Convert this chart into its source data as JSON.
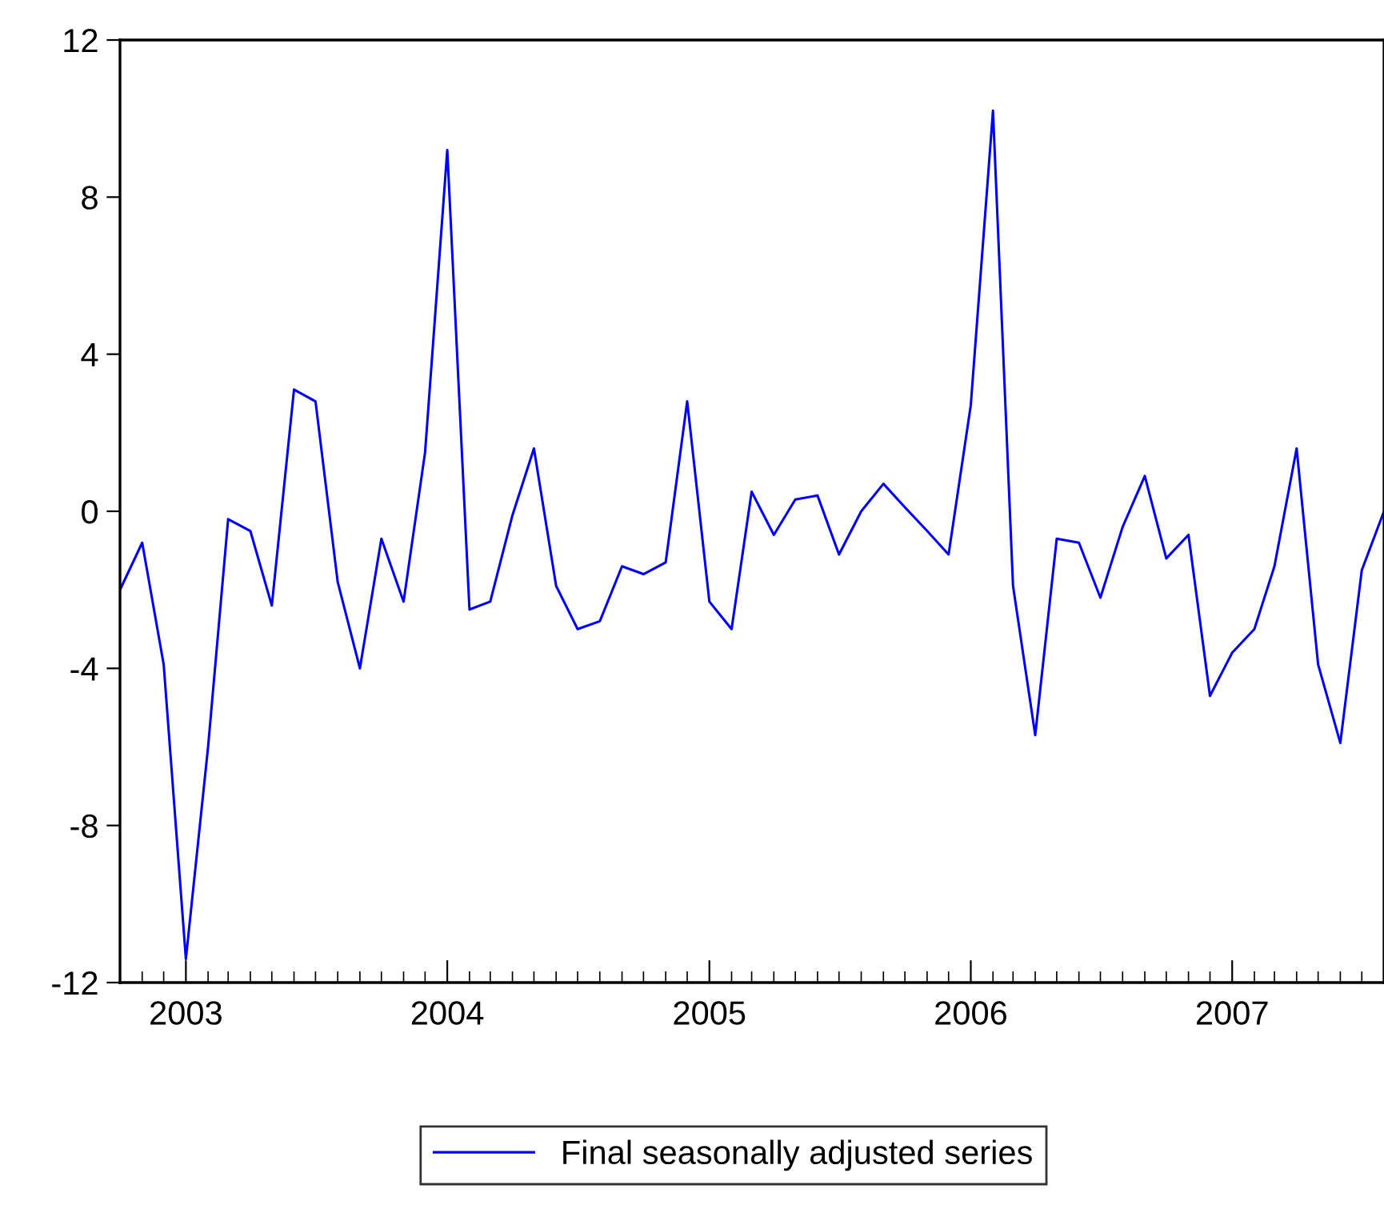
{
  "chart_data": {
    "type": "line",
    "x": [
      "2002-10",
      "2002-11",
      "2002-12",
      "2003-01",
      "2003-02",
      "2003-03",
      "2003-04",
      "2003-05",
      "2003-06",
      "2003-07",
      "2003-08",
      "2003-09",
      "2003-10",
      "2003-11",
      "2003-12",
      "2004-01",
      "2004-02",
      "2004-03",
      "2004-04",
      "2004-05",
      "2004-06",
      "2004-07",
      "2004-08",
      "2004-09",
      "2004-10",
      "2004-11",
      "2004-12",
      "2005-01",
      "2005-02",
      "2005-03",
      "2005-04",
      "2005-05",
      "2005-06",
      "2005-07",
      "2005-08",
      "2005-09",
      "2005-10",
      "2005-11",
      "2005-12",
      "2006-01",
      "2006-02",
      "2006-03",
      "2006-04",
      "2006-05",
      "2006-06",
      "2006-07",
      "2006-08",
      "2006-09",
      "2006-10",
      "2006-11",
      "2006-12",
      "2007-01",
      "2007-02",
      "2007-03",
      "2007-04",
      "2007-05",
      "2007-06",
      "2007-07",
      "2007-08"
    ],
    "series": [
      {
        "name": "Final seasonally adjusted series",
        "color": "#0000ff",
        "values": [
          -2.0,
          -0.8,
          -3.9,
          -11.4,
          -6.0,
          -0.2,
          -0.5,
          -2.4,
          3.1,
          2.8,
          -1.8,
          -4.0,
          -0.7,
          -2.3,
          1.5,
          9.2,
          -2.5,
          -2.3,
          -0.1,
          1.6,
          -1.9,
          -3.0,
          -2.8,
          -1.4,
          -1.6,
          -1.3,
          2.8,
          -2.3,
          -3.0,
          0.5,
          -0.6,
          0.3,
          0.4,
          -1.1,
          0.0,
          0.7,
          0.1,
          -0.5,
          -1.1,
          2.7,
          10.2,
          -1.9,
          -5.7,
          -0.7,
          -0.8,
          -2.2,
          -0.4,
          0.9,
          -1.2,
          -0.6,
          -4.7,
          -3.6,
          -3.0,
          -1.4,
          1.6,
          -3.9,
          -5.9,
          -1.5,
          0.0
        ]
      }
    ],
    "xlim": [
      "2002-10",
      "2007-08"
    ],
    "xticks": [
      {
        "value": "2003-01",
        "label": "2003"
      },
      {
        "value": "2004-01",
        "label": "2004"
      },
      {
        "value": "2005-01",
        "label": "2005"
      },
      {
        "value": "2006-01",
        "label": "2006"
      },
      {
        "value": "2007-01",
        "label": "2007"
      }
    ],
    "ylim": [
      -12,
      12
    ],
    "yticks": [
      12,
      8,
      4,
      0,
      -4,
      -8,
      -12
    ],
    "legend": "bottom",
    "grid": false,
    "marker": "none",
    "line_style": "solid"
  }
}
